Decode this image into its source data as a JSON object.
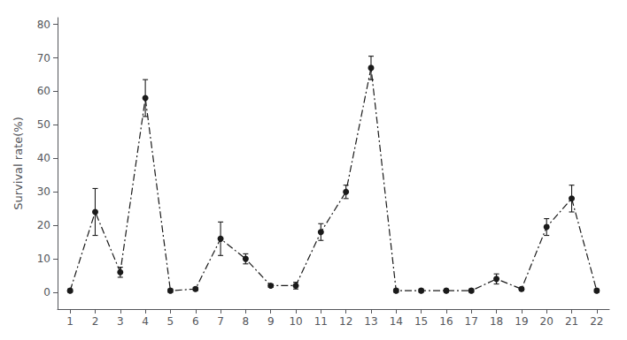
{
  "chart_data": {
    "type": "line",
    "ylabel": "Survival rate(%)",
    "x": [
      1,
      2,
      3,
      4,
      5,
      6,
      7,
      8,
      9,
      10,
      11,
      12,
      13,
      14,
      15,
      16,
      17,
      18,
      19,
      20,
      21,
      22
    ],
    "values": [
      0.5,
      24.0,
      6.0,
      58.0,
      0.5,
      1.0,
      16.0,
      10.0,
      2.0,
      2.0,
      18.0,
      30.0,
      67.0,
      0.5,
      0.5,
      0.5,
      0.5,
      4.0,
      1.0,
      19.5,
      28.0,
      0.5
    ],
    "yerr": [
      0.5,
      7.0,
      1.5,
      5.5,
      0.5,
      0.5,
      5.0,
      1.5,
      0.5,
      1.0,
      2.5,
      2.0,
      3.5,
      0.5,
      0.5,
      0.5,
      0.5,
      1.5,
      0.5,
      2.5,
      4.0,
      0.5
    ],
    "xlim": [
      0.5,
      22.5
    ],
    "xticks": [
      1,
      2,
      3,
      4,
      5,
      6,
      7,
      8,
      9,
      10,
      11,
      12,
      13,
      14,
      15,
      16,
      17,
      18,
      19,
      20,
      21,
      22
    ],
    "ylim": [
      -5,
      82
    ],
    "yticks": [
      0,
      10,
      20,
      30,
      40,
      50,
      60,
      70,
      80
    ],
    "color": "#1a1a1a",
    "marker": "circle",
    "line_style": "dashdot",
    "grid": false
  }
}
